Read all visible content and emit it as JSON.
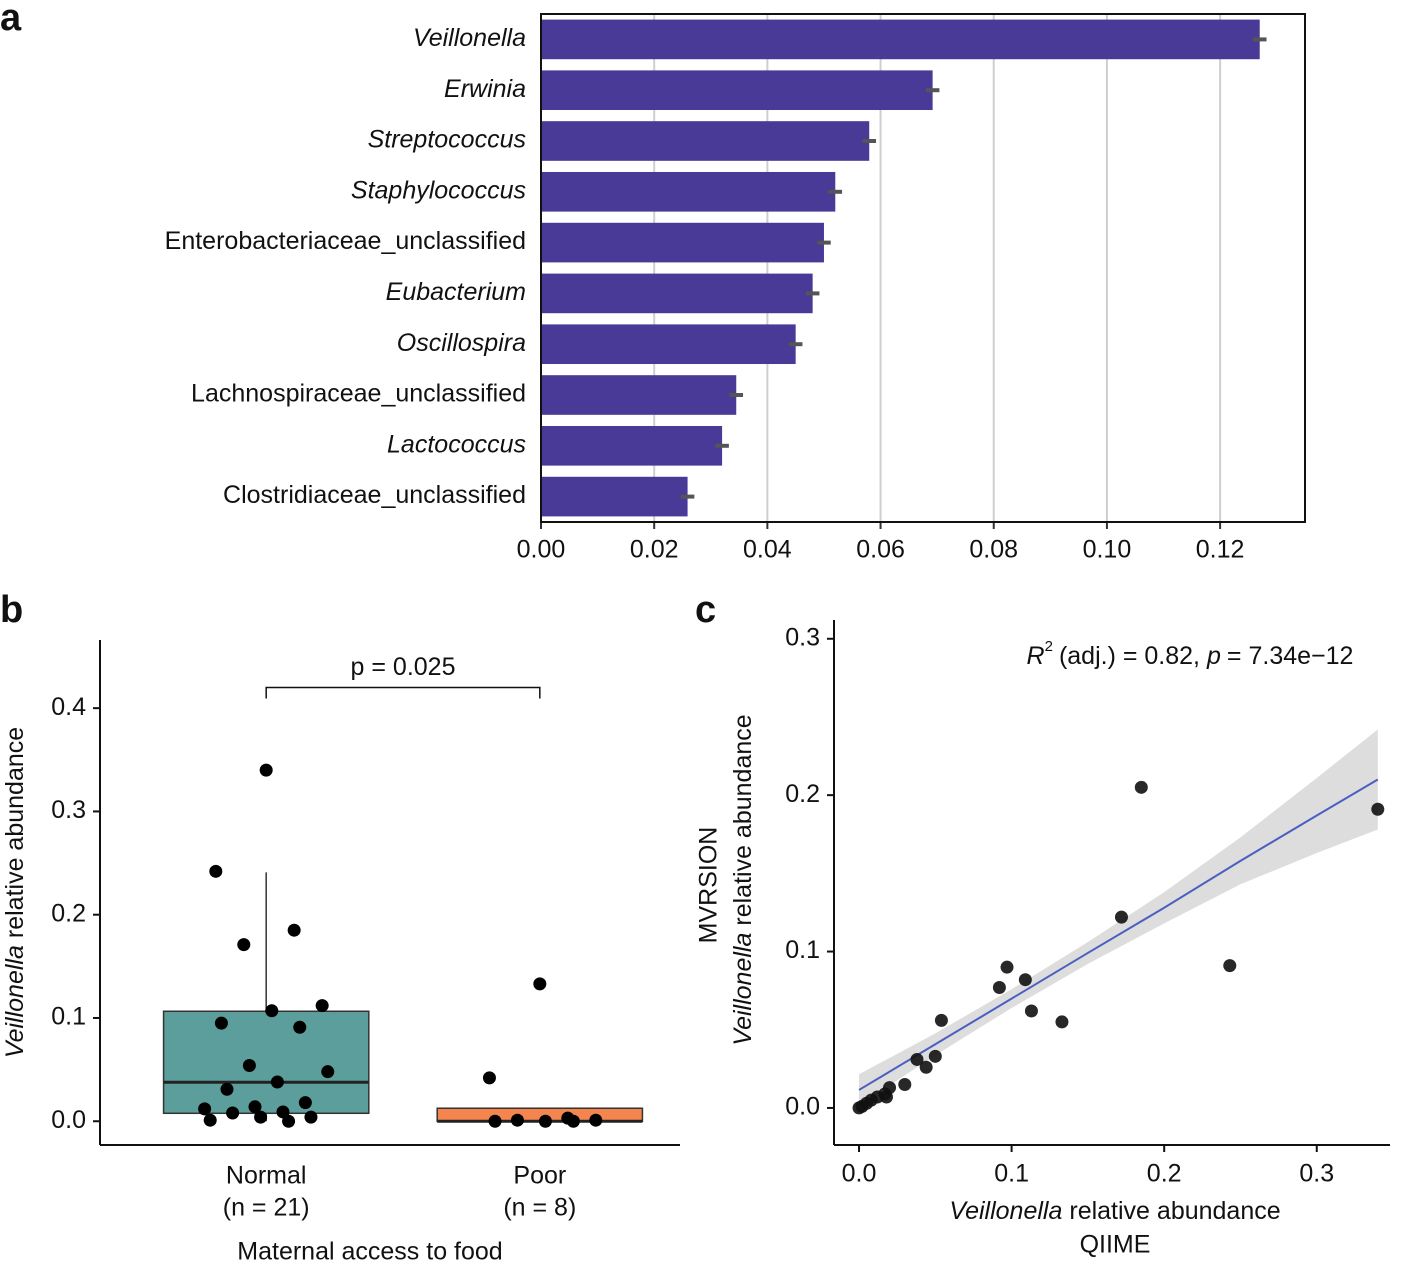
{
  "chart_data": [
    {
      "type": "bar",
      "panel_label": "a",
      "categories": [
        "Veillonella",
        "Erwinia",
        "Streptococcus",
        "Staphylococcus",
        "Enterobacteriaceae_unclassified",
        "Eubacterium",
        "Oscillospira",
        "Lachnospiraceae_unclassified",
        "Lactococcus",
        "Clostridiaceae_unclassified"
      ],
      "italic": [
        true,
        true,
        true,
        true,
        false,
        true,
        true,
        false,
        true,
        false
      ],
      "values": [
        0.127,
        0.0692,
        0.058,
        0.052,
        0.05,
        0.048,
        0.045,
        0.0345,
        0.032,
        0.0259
      ],
      "errors": [
        0.0012,
        0.0012,
        0.0012,
        0.0012,
        0.0012,
        0.0012,
        0.0012,
        0.0012,
        0.0012,
        0.0012
      ],
      "color": "#483a96",
      "xlim": [
        0,
        0.135
      ],
      "xticks": [
        {
          "value": 0,
          "label": "0.00"
        },
        0.02,
        0.04,
        0.06,
        0.08,
        {
          "value": 0.1,
          "label": "0.10"
        },
        0.12
      ],
      "grid": true
    },
    {
      "type": "box",
      "panel_label": "b",
      "y_label": [
        "Veillonella",
        "relative abundance"
      ],
      "x_label": "Maternal access to food",
      "annotation": "p = 0.025",
      "categories": [
        "Normal",
        "Poor"
      ],
      "n_labels": [
        "(n = 21)",
        "(n = 8)"
      ],
      "boxes": [
        {
          "color": "#5c9e9b",
          "q1": 0.0077,
          "median": 0.0378,
          "q3": 0.1065,
          "whisker_low": 0.0,
          "whisker_high": 0.241,
          "points": [
            0.34,
            0.242,
            0.185,
            0.171,
            0.112,
            0.107,
            0.095,
            0.091,
            0.054,
            0.048,
            0.038,
            0.031,
            0.018,
            0.014,
            0.012,
            0.009,
            0.008,
            0.004,
            0.004,
            0.001,
            0.0
          ]
        },
        {
          "color": "#f4854f",
          "q1": 0.0,
          "median": 0.0,
          "q3": 0.0126,
          "whisker_low": 0.0,
          "whisker_high": 0.0126,
          "points": [
            0.133,
            0.042,
            0.003,
            0.001,
            0.001,
            0.0,
            0.0,
            0.0
          ]
        }
      ],
      "ylim": [
        -0.023,
        0.466
      ],
      "yticks": [
        {
          "value": 0,
          "label": "0.0"
        },
        0.1,
        0.2,
        0.3,
        0.4
      ]
    },
    {
      "type": "scatter",
      "panel_label": "c",
      "annotation": [
        "R",
        "2",
        "(adj.) = 0.82,",
        "p",
        "= 7.34e−12"
      ],
      "y_label": [
        "MVRSION",
        "Veillonella",
        "relative abundance"
      ],
      "x_label": [
        "Veillonella",
        "relative abundance",
        "QIIME"
      ],
      "x": [
        0,
        0.002,
        0.005,
        0.008,
        0.012,
        0.017,
        0.018,
        0.02,
        0.03,
        0.038,
        0.044,
        0.05,
        0.054,
        0.092,
        0.097,
        0.109,
        0.113,
        0.133,
        0.172,
        0.185,
        0.243,
        0.34
      ],
      "values": [
        0,
        0.001,
        0.003,
        0.005,
        0.007,
        0.009,
        0.007,
        0.013,
        0.015,
        0.031,
        0.026,
        0.033,
        0.056,
        0.077,
        0.09,
        0.082,
        0.062,
        0.055,
        0.122,
        0.205,
        0.091,
        0.191
      ],
      "color": "#111111",
      "fit": {
        "x": [
          0,
          0.05,
          0.1,
          0.15,
          0.2,
          0.25,
          0.3,
          0.34
        ],
        "y": [
          0.0115,
          0.0407,
          0.0699,
          0.0991,
          0.128,
          0.158,
          0.187,
          0.21
        ],
        "lower": [
          0.0015,
          0.0337,
          0.0639,
          0.0921,
          0.118,
          0.143,
          0.163,
          0.178
        ],
        "upper": [
          0.0215,
          0.0477,
          0.0759,
          0.1061,
          0.138,
          0.173,
          0.211,
          0.242
        ],
        "color": "#4a5fbf",
        "band_color": "#d9d9d9"
      },
      "xlim": [
        -0.0164,
        0.348
      ],
      "ylim": [
        -0.0237,
        0.312
      ],
      "xticks": [
        {
          "value": 0,
          "label": "0.0"
        },
        0.1,
        0.2,
        0.3
      ],
      "yticks": [
        {
          "value": 0,
          "label": "0.0"
        },
        0.1,
        0.2,
        0.3
      ]
    }
  ]
}
